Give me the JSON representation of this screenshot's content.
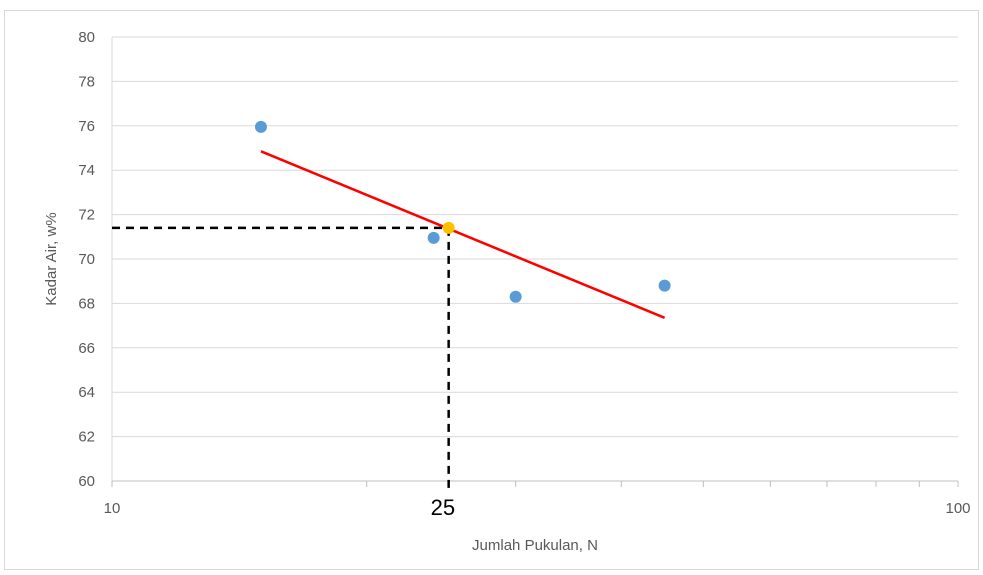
{
  "chart_data": {
    "type": "scatter",
    "xlabel": "Jumlah Pukulan, N",
    "ylabel": "Kadar Air, w%",
    "x_scale": "log",
    "xlim": [
      10,
      100
    ],
    "ylim": [
      60,
      80
    ],
    "y_ticks": [
      60,
      62,
      64,
      66,
      68,
      70,
      72,
      74,
      76,
      78,
      80
    ],
    "x_tick_labels": [
      {
        "value": 10,
        "label": "10"
      },
      {
        "value": 100,
        "label": "100"
      }
    ],
    "grid": "horizontal",
    "series": [
      {
        "color": "#5b9bd5",
        "points": [
          {
            "x": 15,
            "y": 75.95
          },
          {
            "x": 24,
            "y": 70.95
          },
          {
            "x": 30,
            "y": 68.3
          },
          {
            "x": 45,
            "y": 68.8
          }
        ]
      }
    ],
    "trendline": {
      "color": "#ff0000",
      "points": [
        {
          "x": 15,
          "y": 74.85
        },
        {
          "x": 45,
          "y": 67.35
        }
      ]
    },
    "marked_point": {
      "x": 25,
      "y": 71.4,
      "color": "#ffc000"
    },
    "annotation": {
      "label": "25",
      "x": 25
    },
    "guide_color": "#000000"
  }
}
